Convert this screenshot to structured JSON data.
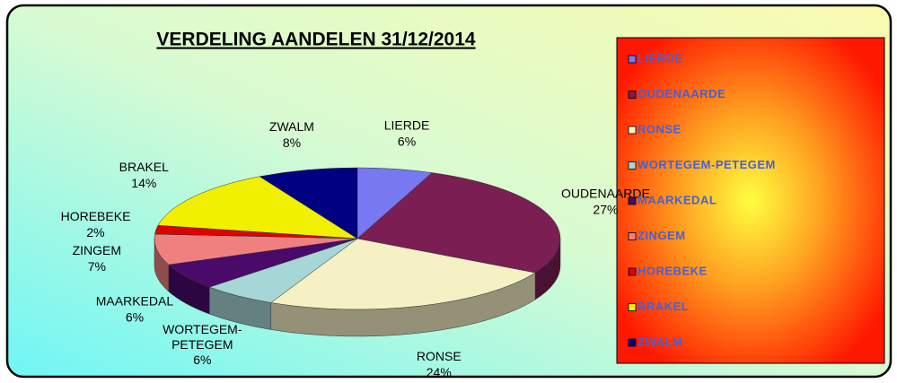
{
  "chart_data": {
    "type": "pie3d",
    "title": "VERDELING AANDELEN 31/12/2014",
    "categories": [
      "LIERDE",
      "OUDENAARDE",
      "RONSE",
      "WORTEGEM-PETEGEM",
      "MAARKEDAL",
      "ZINGEM",
      "HOREBEKE",
      "BRAKEL",
      "ZWALM"
    ],
    "values": [
      6,
      27,
      24,
      6,
      6,
      7,
      2,
      14,
      8
    ],
    "value_labels": [
      "6%",
      "27%",
      "24%",
      "6%",
      "6%",
      "7%",
      "2%",
      "14%",
      "8%"
    ],
    "colors": [
      "#7878f0",
      "#7a1e54",
      "#f6f1c4",
      "#a6d6d6",
      "#4a0a6a",
      "#f08080",
      "#e00000",
      "#f0f000",
      "#000080"
    ],
    "legend": "right"
  }
}
